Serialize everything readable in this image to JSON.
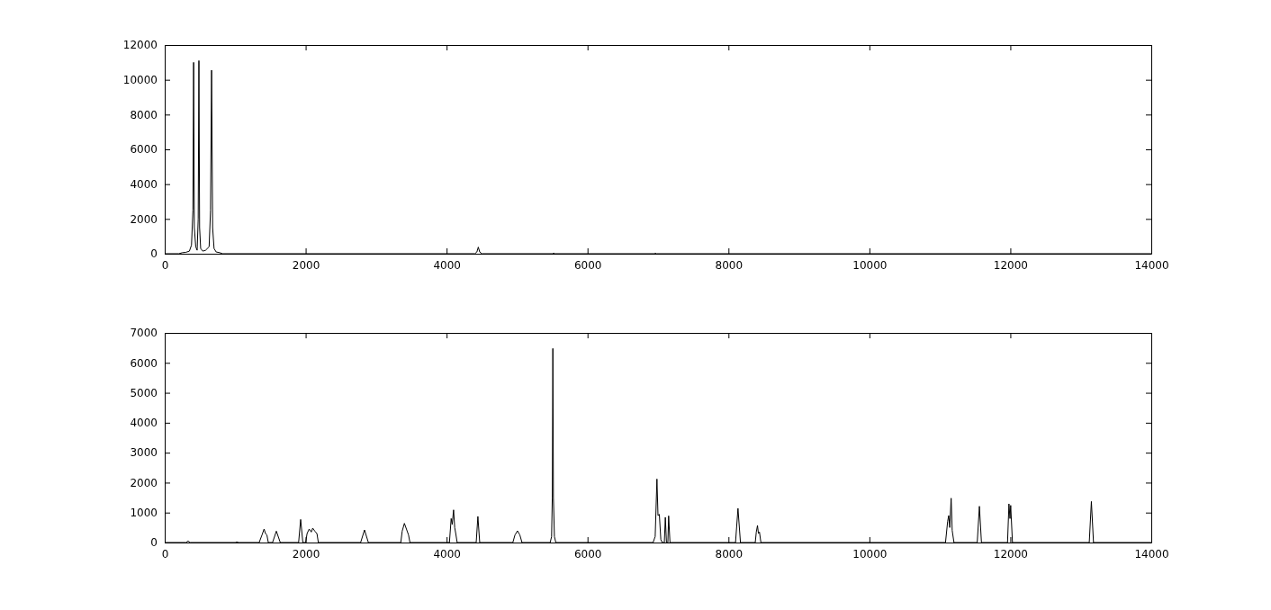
{
  "chart_data": [
    {
      "type": "line",
      "xlim": [
        0,
        14000
      ],
      "xticks": [
        0,
        2000,
        4000,
        6000,
        8000,
        10000,
        12000,
        14000
      ],
      "ylim": [
        0,
        12000
      ],
      "yticks": [
        0,
        2000,
        4000,
        6000,
        8000,
        10000,
        12000
      ],
      "series": [
        {
          "color": "#000000",
          "x": [
            0,
            200,
            250,
            300,
            350,
            380,
            400,
            410,
            420,
            440,
            460,
            475,
            485,
            495,
            510,
            540,
            580,
            630,
            650,
            665,
            680,
            700,
            730,
            780,
            820,
            4400,
            4430,
            4450,
            4470,
            4500,
            5500,
            5520,
            5540,
            6950,
            6960,
            6980,
            14000
          ],
          "values": [
            0,
            0,
            60,
            80,
            150,
            500,
            2500,
            11000,
            1500,
            400,
            200,
            2000,
            11100,
            1500,
            300,
            150,
            200,
            400,
            2500,
            10550,
            1500,
            300,
            100,
            60,
            0,
            0,
            100,
            380,
            100,
            0,
            0,
            30,
            0,
            0,
            30,
            0,
            0
          ]
        }
      ]
    },
    {
      "type": "line",
      "xlim": [
        0,
        14000
      ],
      "xticks": [
        0,
        2000,
        4000,
        6000,
        8000,
        10000,
        12000,
        14000
      ],
      "ylim": [
        0,
        7000
      ],
      "yticks": [
        0,
        1000,
        2000,
        3000,
        4000,
        5000,
        6000,
        7000
      ],
      "series": [
        {
          "color": "#000000",
          "x": [
            0,
            300,
            332,
            360,
            1000,
            1020,
            1050,
            1340,
            1380,
            1410,
            1430,
            1450,
            1470,
            1530,
            1584,
            1640,
            1900,
            1929,
            1960,
            2000,
            2020,
            2050,
            2080,
            2100,
            2130,
            2160,
            2180,
            2780,
            2835,
            2890,
            3350,
            3370,
            3401,
            3430,
            3460,
            3480,
            4040,
            4065,
            4080,
            4099,
            4115,
            4130,
            4150,
            4420,
            4444,
            4470,
            4940,
            4970,
            5006,
            5040,
            5070,
            5470,
            5490,
            5500,
            5508,
            5516,
            5530,
            5550,
            6930,
            6960,
            6985,
            7000,
            7019,
            7040,
            7060,
            7090,
            7104,
            7120,
            7140,
            7151,
            7170,
            8100,
            8135,
            8170,
            8380,
            8395,
            8412,
            8425,
            8440,
            8460,
            11080,
            11110,
            11125,
            11140,
            11160,
            11175,
            11200,
            11530,
            11561,
            11590,
            11960,
            11980,
            11995,
            12005,
            12030,
            13120,
            13150,
            13180,
            14000
          ],
          "values": [
            0,
            0,
            50,
            0,
            0,
            20,
            0,
            0,
            250,
            450,
            300,
            250,
            0,
            0,
            380,
            0,
            0,
            770,
            0,
            0,
            300,
            450,
            350,
            480,
            380,
            300,
            0,
            0,
            420,
            0,
            0,
            380,
            640,
            450,
            250,
            0,
            0,
            800,
            600,
            1090,
            500,
            300,
            0,
            0,
            870,
            0,
            0,
            250,
            390,
            250,
            0,
            0,
            200,
            1500,
            6480,
            1500,
            200,
            0,
            0,
            200,
            2120,
            900,
            940,
            100,
            0,
            0,
            840,
            0,
            0,
            890,
            0,
            0,
            1140,
            0,
            0,
            350,
            570,
            300,
            350,
            0,
            0,
            700,
            900,
            500,
            1480,
            400,
            0,
            0,
            1210,
            0,
            0,
            1290,
            800,
            1240,
            0,
            0,
            1370,
            0,
            0
          ]
        }
      ]
    }
  ]
}
